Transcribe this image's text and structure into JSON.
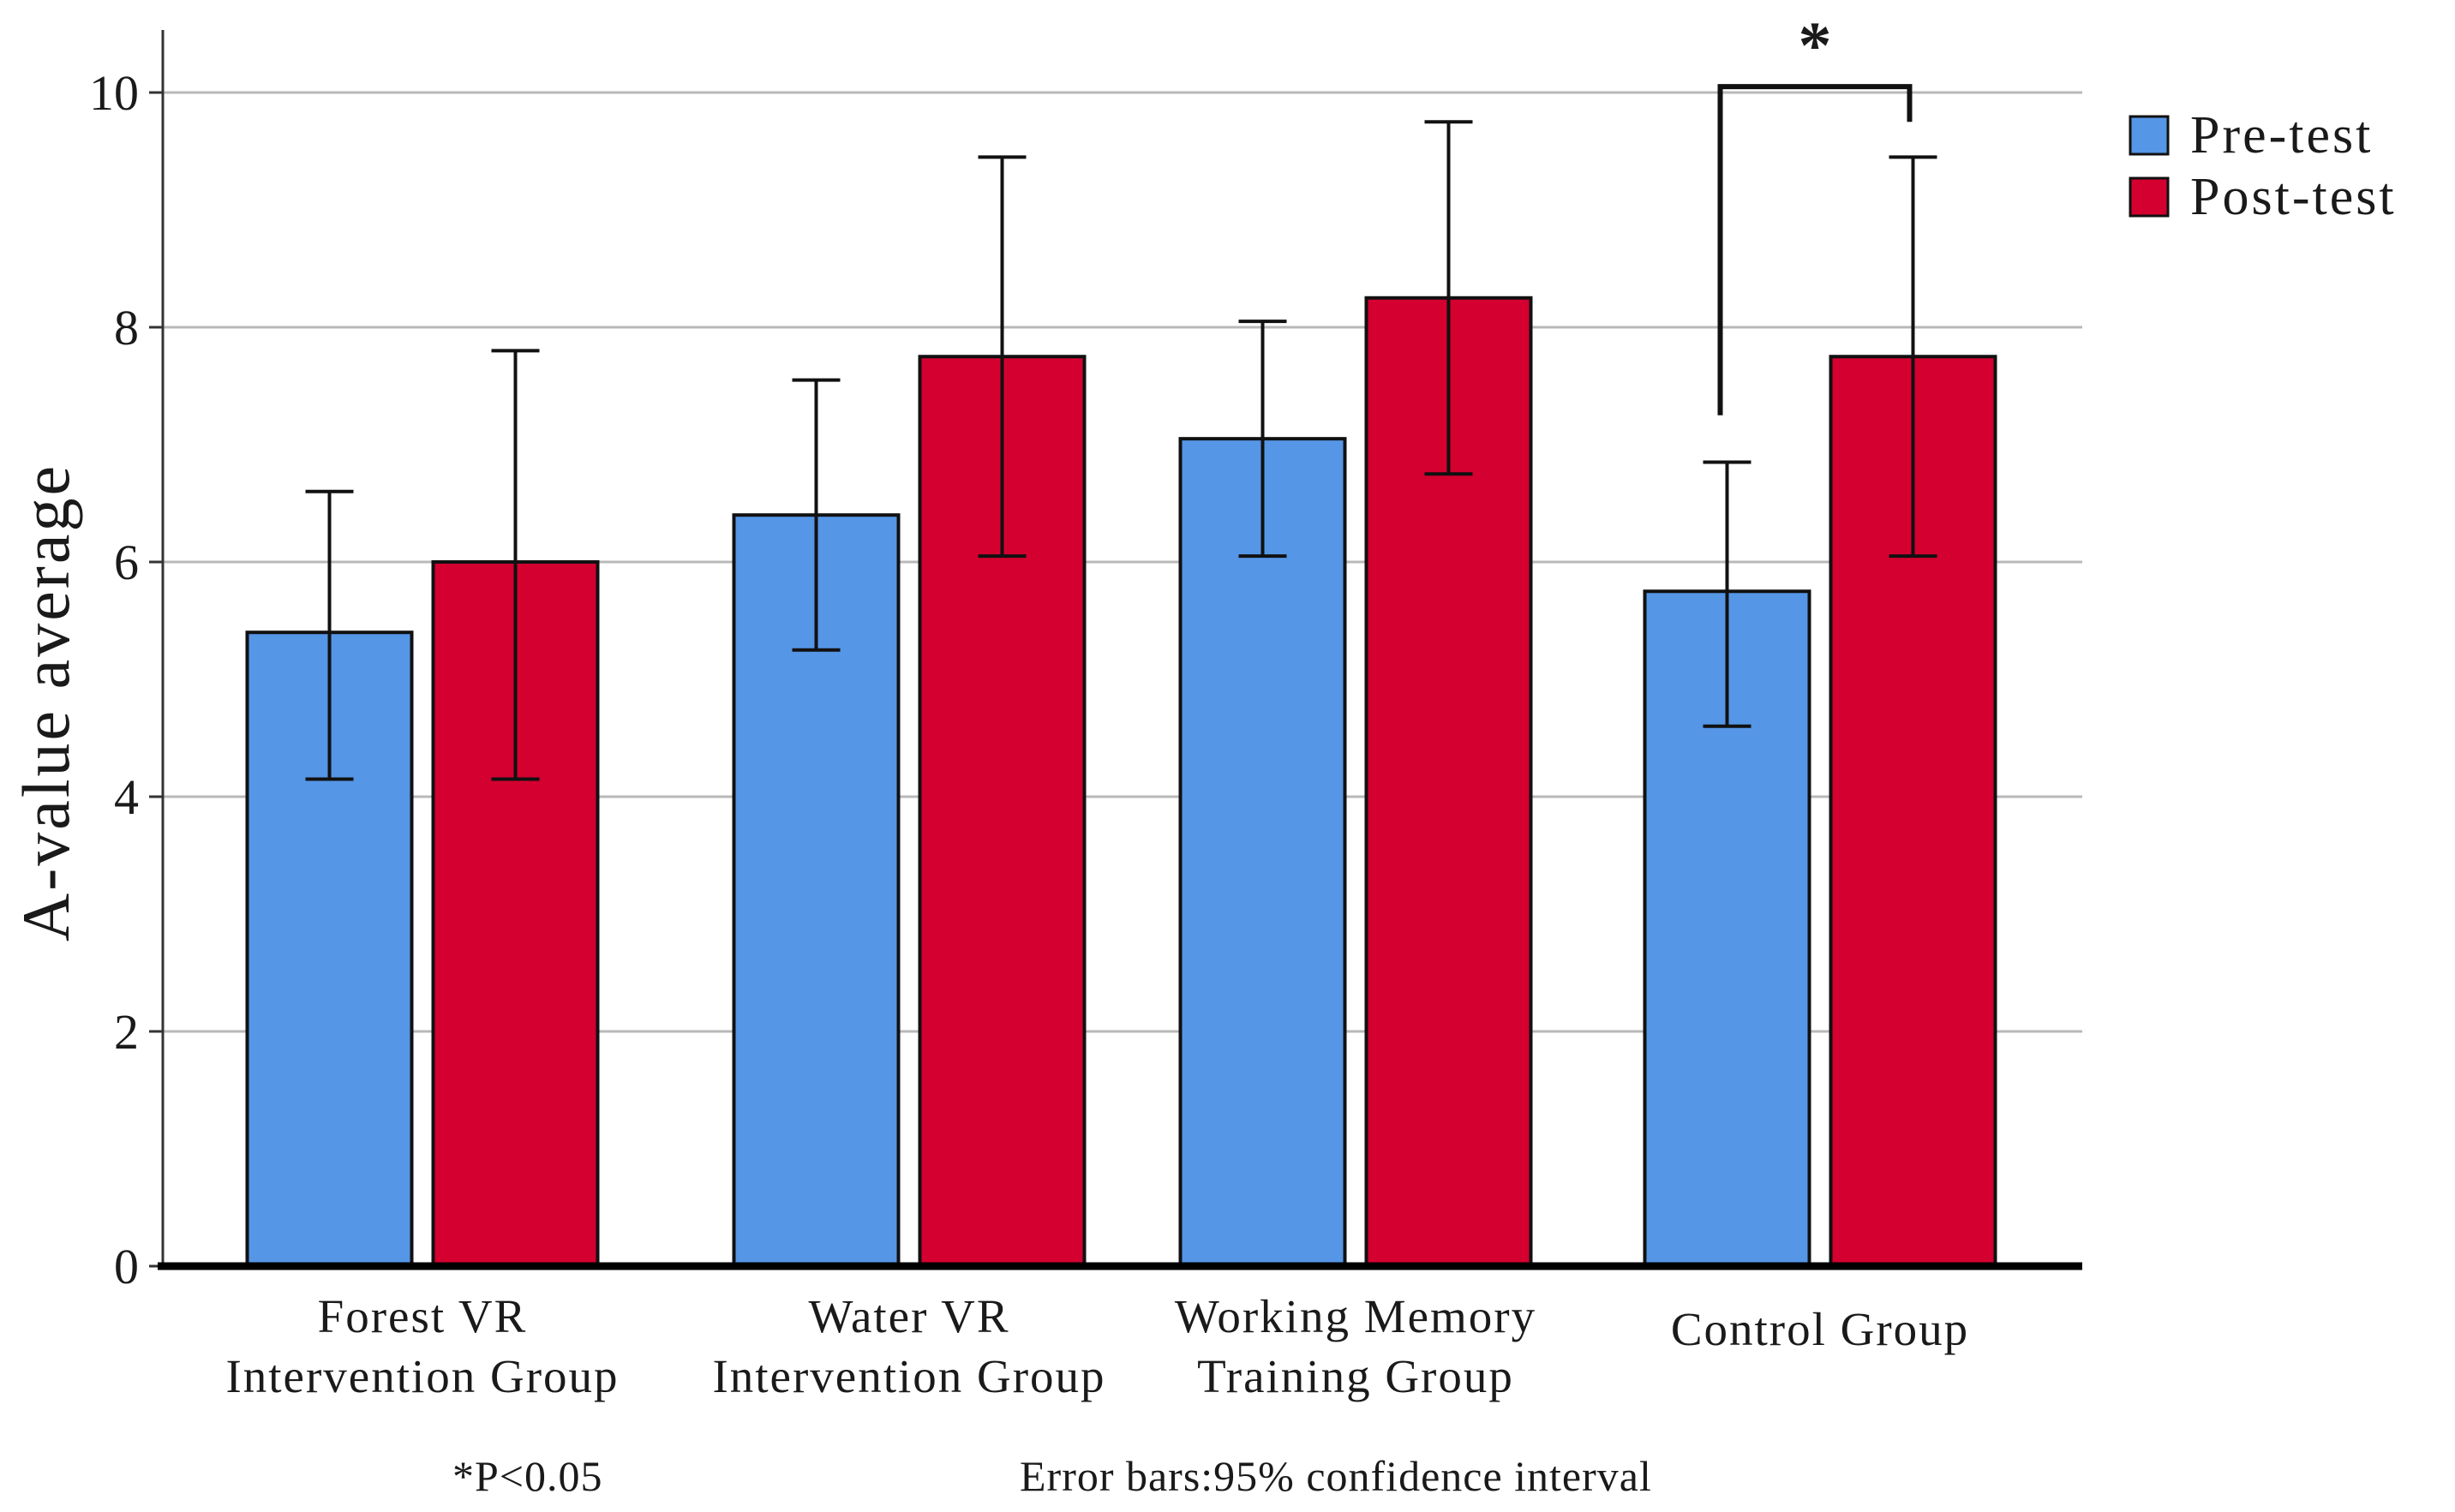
{
  "chart_data": {
    "type": "bar",
    "title": "",
    "xlabel": "",
    "ylabel": "A-value average",
    "ylim": [
      0,
      10
    ],
    "yticks": [
      "0",
      "2",
      "4",
      "6",
      "8",
      "10"
    ],
    "grid": true,
    "legend_position": "top-right",
    "categories": [
      [
        "Forest VR",
        "Intervention Group"
      ],
      [
        "Water VR",
        "Intervention Group"
      ],
      [
        "Working Memory",
        "Training Group"
      ],
      [
        "Control Group"
      ]
    ],
    "series": [
      {
        "name": "Pre-test",
        "color": "#5596E6",
        "values": [
          5.4,
          6.4,
          7.05,
          5.75
        ],
        "error_low": [
          4.15,
          5.25,
          6.05,
          4.6
        ],
        "error_high": [
          6.6,
          7.55,
          8.05,
          6.85
        ]
      },
      {
        "name": "Post-test",
        "color": "#D30030",
        "values": [
          6.0,
          7.75,
          8.25,
          7.75
        ],
        "error_low": [
          4.15,
          6.05,
          6.75,
          6.05
        ],
        "error_high": [
          7.8,
          9.45,
          9.75,
          9.45
        ]
      }
    ],
    "annotations": {
      "significance": {
        "category_index": 3,
        "marker": "*",
        "bracket_level": 10.05,
        "left_end": 7.25,
        "right_end": 9.75
      },
      "footnote_left": "*P<0.05",
      "footnote_right": "Error bars:95% confidence interval"
    }
  }
}
